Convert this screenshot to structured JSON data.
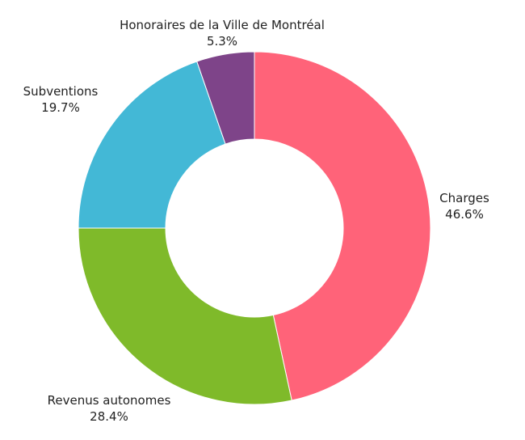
{
  "chart_data": {
    "type": "pie",
    "style": "donut",
    "title": "",
    "categories": [
      "Charges",
      "Revenus autonomes",
      "Subventions",
      "Honoraires de la Ville de Montréal"
    ],
    "values": [
      46.6,
      28.4,
      19.7,
      5.3
    ],
    "value_labels": [
      "46.6%",
      "28.4%",
      "19.7%",
      "5.3%"
    ],
    "colors": [
      "#ff6379",
      "#7fba2a",
      "#43b8d6",
      "#7e4489"
    ],
    "start": "top",
    "direction": "clockwise",
    "legend": "none"
  }
}
